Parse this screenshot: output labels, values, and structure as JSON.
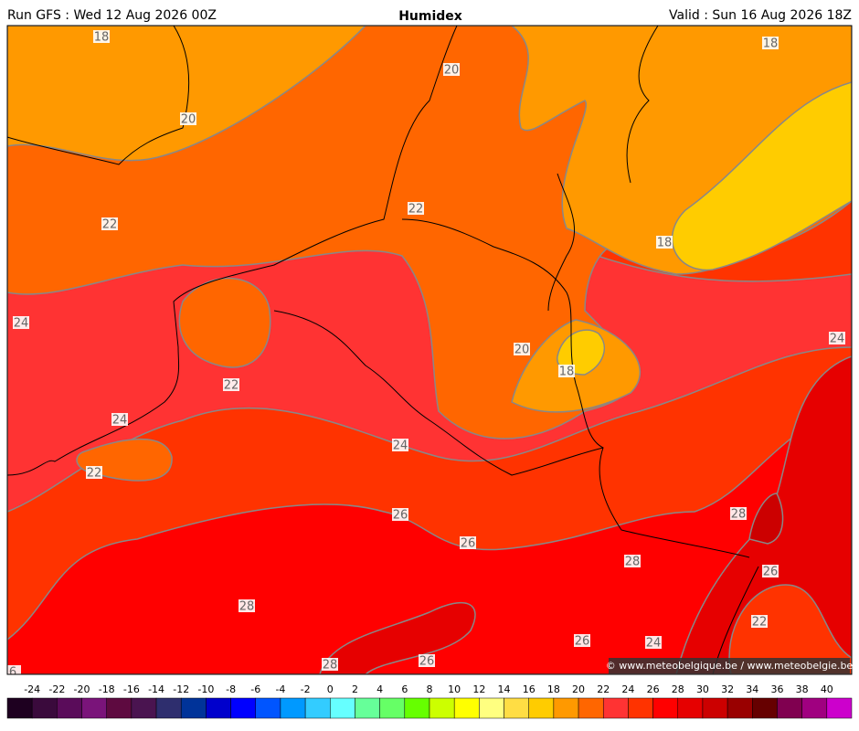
{
  "header": {
    "left": "Run GFS : Wed 12 Aug 2026 00Z",
    "title": "Humidex",
    "right": "Valid : Sun 16 Aug 2026 18Z"
  },
  "contour_labels": [
    18,
    20,
    18,
    20,
    22,
    22,
    18,
    24,
    24,
    20,
    18,
    22,
    24,
    24,
    22,
    26,
    28,
    26,
    28,
    26,
    28,
    22,
    26,
    24,
    26,
    28,
    6
  ],
  "colorbar": {
    "labels": [
      -24,
      -22,
      -20,
      -18,
      -16,
      -14,
      -12,
      -10,
      -8,
      -6,
      -4,
      -2,
      0,
      2,
      4,
      6,
      8,
      10,
      12,
      14,
      16,
      18,
      20,
      22,
      24,
      26,
      28,
      30,
      32,
      34,
      36,
      38,
      40
    ],
    "colors": [
      "#1e0020",
      "#3a0a3c",
      "#5a0c5a",
      "#7a147a",
      "#5e0a40",
      "#4a1450",
      "#2e2e6e",
      "#003399",
      "#0000cc",
      "#0000ff",
      "#0055ff",
      "#0099ff",
      "#33ccff",
      "#66ffff",
      "#66ff99",
      "#66ff66",
      "#66ff00",
      "#ccff00",
      "#ffff00",
      "#ffff80",
      "#ffdd44",
      "#ffcc00",
      "#ff9900",
      "#ff6600",
      "#ff3333",
      "#ff3300",
      "#ff0000",
      "#e60000",
      "#cc0000",
      "#990000",
      "#660000",
      "#800050",
      "#a00080",
      "#cc00cc"
    ]
  },
  "credit": "© www.meteobelgique.be / www.meteobelgie.be"
}
